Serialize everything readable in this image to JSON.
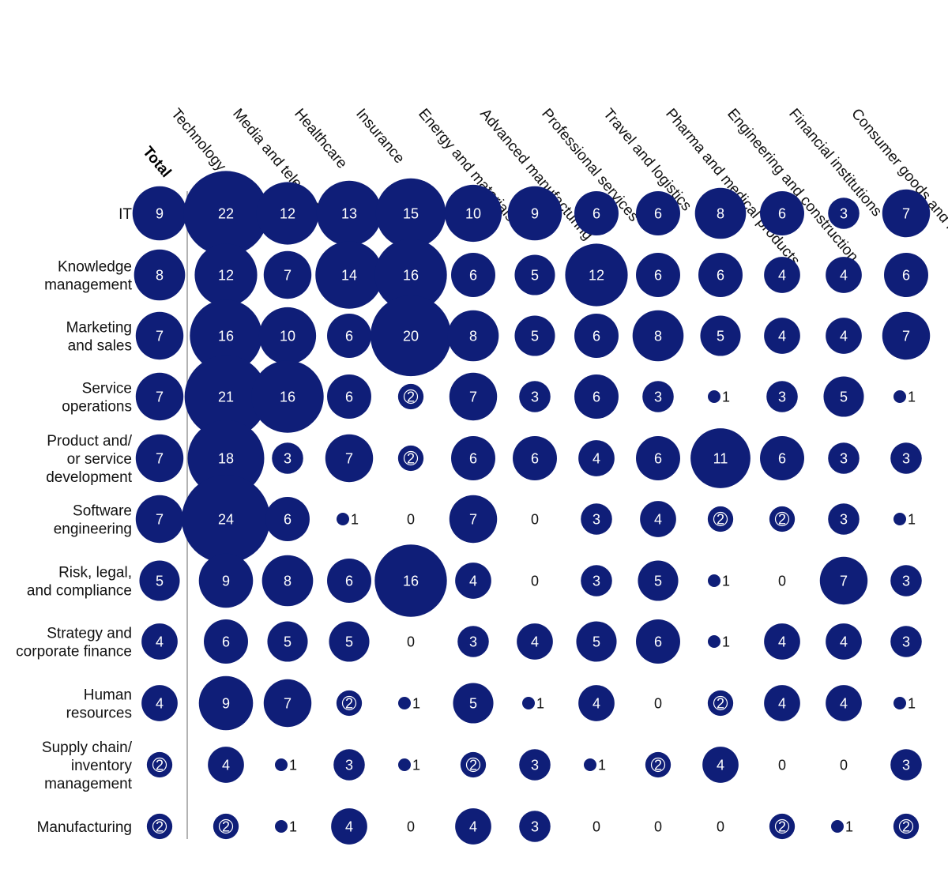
{
  "colors": {
    "bubble": "#0f1e78",
    "divider": "#9a9a9a",
    "text": "#111111",
    "value_inside": "#ffffff"
  },
  "chart_data": {
    "type": "bubble-matrix",
    "total_label": "Total",
    "columns": [
      "Technology",
      "Media and telecom",
      "Healthcare",
      "Insurance",
      "Energy and materials",
      "Advanced manufacturing",
      "Professional services",
      "Travel and logistics",
      "Pharma and medical products",
      "Engineering and construction",
      "Financial institutions",
      "Consumer goods and retail"
    ],
    "rows": [
      {
        "label": [
          "IT"
        ],
        "total": 9,
        "values": [
          22,
          12,
          13,
          15,
          10,
          9,
          6,
          6,
          8,
          6,
          3,
          7
        ]
      },
      {
        "label": [
          "Knowledge",
          "management"
        ],
        "total": 8,
        "values": [
          12,
          7,
          14,
          16,
          6,
          5,
          12,
          6,
          6,
          4,
          4,
          6
        ]
      },
      {
        "label": [
          "Marketing",
          "and sales"
        ],
        "total": 7,
        "values": [
          16,
          10,
          6,
          20,
          8,
          5,
          6,
          8,
          5,
          4,
          4,
          7
        ]
      },
      {
        "label": [
          "Service",
          "operations"
        ],
        "total": 7,
        "values": [
          21,
          16,
          6,
          2,
          7,
          3,
          6,
          3,
          1,
          3,
          5,
          1
        ]
      },
      {
        "label": [
          "Product and/",
          "or service",
          "development"
        ],
        "total": 7,
        "values": [
          18,
          3,
          7,
          2,
          6,
          6,
          4,
          6,
          11,
          6,
          3,
          3
        ]
      },
      {
        "label": [
          "Software",
          "engineering"
        ],
        "total": 7,
        "values": [
          24,
          6,
          1,
          0,
          7,
          0,
          3,
          4,
          2,
          2,
          3,
          1
        ]
      },
      {
        "label": [
          "Risk, legal,",
          "and compliance"
        ],
        "total": 5,
        "values": [
          9,
          8,
          6,
          16,
          4,
          0,
          3,
          5,
          1,
          0,
          7,
          3
        ]
      },
      {
        "label": [
          "Strategy and",
          "corporate finance"
        ],
        "total": 4,
        "values": [
          6,
          5,
          5,
          0,
          3,
          4,
          5,
          6,
          1,
          4,
          4,
          3
        ]
      },
      {
        "label": [
          "Human",
          "resources"
        ],
        "total": 4,
        "values": [
          9,
          7,
          2,
          1,
          5,
          1,
          4,
          0,
          2,
          4,
          4,
          1
        ]
      },
      {
        "label": [
          "Supply chain/",
          "inventory",
          "management"
        ],
        "total": 2,
        "values": [
          4,
          1,
          3,
          1,
          2,
          3,
          1,
          2,
          4,
          0,
          0,
          3
        ]
      },
      {
        "label": [
          "Manufacturing"
        ],
        "total": 2,
        "values": [
          2,
          1,
          4,
          0,
          4,
          3,
          0,
          0,
          0,
          2,
          1,
          2
        ]
      }
    ],
    "legend": "none",
    "grid": false
  }
}
